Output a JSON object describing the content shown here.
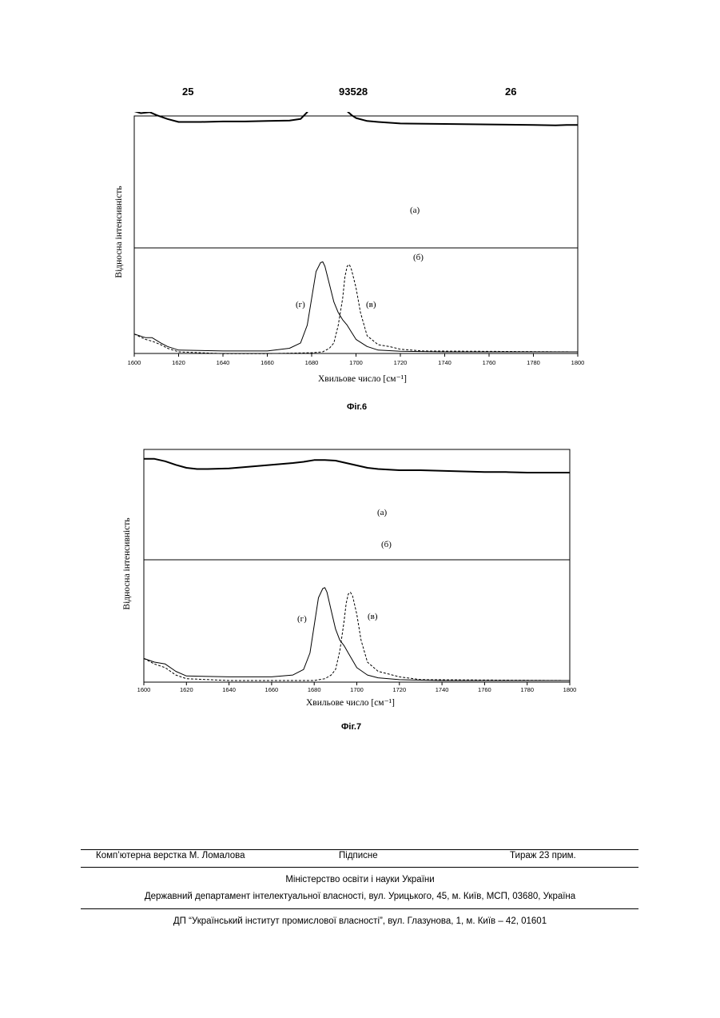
{
  "header": {
    "left_page": "25",
    "patent_number": "93528",
    "right_page": "26"
  },
  "figures": [
    {
      "caption": "Фіг.6",
      "chart_data": {
        "type": "line",
        "xlabel": "Хвильове число [см⁻¹]",
        "ylabel": "Відносна інтенсивність",
        "xlim": [
          1600,
          1800
        ],
        "xticks": [
          1600,
          1620,
          1640,
          1660,
          1680,
          1700,
          1720,
          1740,
          1760,
          1780,
          1800
        ],
        "series": [
          {
            "name": "(а)",
            "style": "solid-bold",
            "x": [
              1600,
              1603,
              1607,
              1610,
              1615,
              1620,
              1630,
              1640,
              1650,
              1660,
              1670,
              1675,
              1678,
              1680,
              1682,
              1684,
              1685,
              1686,
              1688,
              1690,
              1692,
              1694,
              1696,
              1698,
              1700,
              1705,
              1710,
              1720,
              1740,
              1760,
              1780,
              1790,
              1795,
              1800
            ],
            "y": [
              0.87,
              0.85,
              0.86,
              0.83,
              0.79,
              0.76,
              0.76,
              0.765,
              0.765,
              0.77,
              0.775,
              0.79,
              0.86,
              0.95,
              1.03,
              1.08,
              1.1,
              1.08,
              1.0,
              0.94,
              0.91,
              0.9,
              0.87,
              0.83,
              0.8,
              0.77,
              0.76,
              0.745,
              0.74,
              0.735,
              0.73,
              0.725,
              0.73,
              0.73
            ]
          },
          {
            "name": "(б)",
            "style": "solid",
            "x": [
              1600,
              1650,
              1700,
              1750,
              1800
            ],
            "y": [
              0.535,
              0.54,
              0.545,
              0.54,
              0.535
            ]
          },
          {
            "name": "(г)",
            "style": "solid",
            "x": [
              1600,
              1605,
              1608,
              1612,
              1615,
              1620,
              1640,
              1660,
              1670,
              1675,
              1678,
              1680,
              1682,
              1684,
              1685,
              1686,
              1688,
              1690,
              1692,
              1694,
              1696,
              1698,
              1700,
              1705,
              1710,
              1720,
              1740,
              1800
            ],
            "y": [
              0.1,
              0.08,
              0.08,
              0.05,
              0.03,
              0.01,
              0.005,
              0.005,
              0.02,
              0.05,
              0.15,
              0.3,
              0.45,
              0.5,
              0.505,
              0.48,
              0.38,
              0.28,
              0.22,
              0.18,
              0.15,
              0.11,
              0.07,
              0.03,
              0.01,
              0.003,
              0.0,
              0.0
            ]
          },
          {
            "name": "(в)",
            "style": "dashed",
            "x": [
              1600,
              1605,
              1608,
              1612,
              1615,
              1620,
              1640,
              1660,
              1680,
              1685,
              1688,
              1690,
              1692,
              1694,
              1695,
              1696,
              1697,
              1698,
              1700,
              1702,
              1705,
              1710,
              1715,
              1720,
              1730,
              1800
            ],
            "y": [
              0.1,
              0.07,
              0.06,
              0.04,
              0.02,
              0.0,
              -0.01,
              -0.01,
              -0.005,
              0.0,
              0.02,
              0.05,
              0.15,
              0.3,
              0.42,
              0.48,
              0.49,
              0.46,
              0.36,
              0.22,
              0.09,
              0.04,
              0.03,
              0.015,
              0.005,
              0.0
            ]
          }
        ]
      }
    },
    {
      "caption": "Фіг.7",
      "chart_data": {
        "type": "line",
        "xlabel": "Хвильове число [см⁻¹]",
        "ylabel": "Відносна інтенсивність",
        "xlim": [
          1600,
          1800
        ],
        "xticks": [
          1600,
          1620,
          1640,
          1660,
          1680,
          1700,
          1720,
          1740,
          1760,
          1780,
          1800
        ],
        "series": [
          {
            "name": "(а)",
            "style": "solid-bold",
            "x": [
              1600,
              1605,
              1610,
              1615,
              1620,
              1625,
              1630,
              1640,
              1650,
              1660,
              1670,
              1675,
              1680,
              1685,
              1690,
              1695,
              1700,
              1705,
              1710,
              1720,
              1730,
              1740,
              1750,
              1760,
              1770,
              1780,
              1790,
              1800
            ],
            "y": [
              0.95,
              0.95,
              0.91,
              0.85,
              0.8,
              0.78,
              0.78,
              0.79,
              0.82,
              0.85,
              0.88,
              0.9,
              0.93,
              0.93,
              0.92,
              0.88,
              0.84,
              0.8,
              0.78,
              0.76,
              0.76,
              0.75,
              0.74,
              0.73,
              0.73,
              0.72,
              0.72,
              0.72
            ]
          },
          {
            "name": "(б)",
            "style": "solid",
            "x": [
              1600,
              1610,
              1620,
              1625,
              1630,
              1640,
              1650,
              1660,
              1670,
              1680,
              1690,
              1700,
              1710,
              1720,
              1730,
              1740,
              1745,
              1750,
              1760,
              1770,
              1780,
              1790,
              1800
            ],
            "y": [
              0.57,
              0.57,
              0.565,
              0.58,
              0.575,
              0.59,
              0.59,
              0.595,
              0.59,
              0.59,
              0.59,
              0.59,
              0.59,
              0.59,
              0.59,
              0.58,
              0.56,
              0.565,
              0.555,
              0.555,
              0.56,
              0.565,
              0.565
            ]
          },
          {
            "name": "(г)",
            "style": "solid",
            "x": [
              1600,
              1605,
              1610,
              1615,
              1620,
              1640,
              1660,
              1670,
              1675,
              1678,
              1680,
              1682,
              1684,
              1685,
              1686,
              1688,
              1690,
              1692,
              1694,
              1696,
              1698,
              1700,
              1705,
              1710,
              1720,
              1740,
              1800
            ],
            "y": [
              0.12,
              0.1,
              0.09,
              0.05,
              0.025,
              0.02,
              0.02,
              0.03,
              0.06,
              0.15,
              0.3,
              0.45,
              0.5,
              0.505,
              0.48,
              0.38,
              0.28,
              0.22,
              0.19,
              0.15,
              0.11,
              0.07,
              0.03,
              0.015,
              0.005,
              0.0,
              0.0
            ]
          },
          {
            "name": "(в)",
            "style": "dashed",
            "x": [
              1600,
              1605,
              1610,
              1615,
              1620,
              1640,
              1660,
              1680,
              1685,
              1688,
              1690,
              1692,
              1694,
              1695,
              1696,
              1697,
              1698,
              1700,
              1702,
              1705,
              1710,
              1715,
              1720,
              1730,
              1800
            ],
            "y": [
              0.12,
              0.09,
              0.07,
              0.03,
              0.01,
              0.0,
              0.0,
              0.0,
              0.01,
              0.03,
              0.06,
              0.16,
              0.32,
              0.42,
              0.47,
              0.48,
              0.46,
              0.36,
              0.22,
              0.1,
              0.05,
              0.035,
              0.02,
              0.005,
              0.0
            ]
          }
        ]
      }
    }
  ],
  "footer": {
    "typesetting": "Комп’ютерна верстка М. Ломалова",
    "signed": "Підписне",
    "circulation": "Тираж 23 прим.",
    "ministry": "Міністерство освіти і науки України",
    "department": "Державний департамент інтелектуальної власності, вул. Урицького, 45, м. Київ, МСП, 03680, Україна",
    "institute": "ДП “Український інститут промислової власності”, вул. Глазунова, 1, м. Київ – 42, 01601"
  }
}
